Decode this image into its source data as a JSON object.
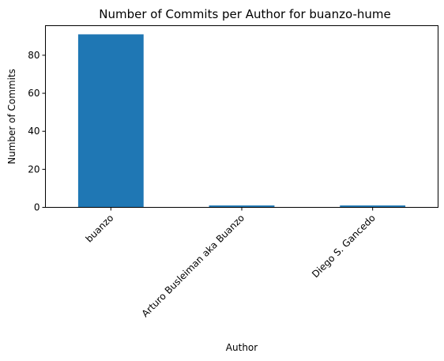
{
  "chart_data": {
    "type": "bar",
    "title": "Number of Commits per Author for buanzo-hume",
    "xlabel": "Author",
    "ylabel": "Number of Commits",
    "categories": [
      "buanzo",
      "Arturo Busleiman aka Buanzo",
      "Diego S. Gancedo"
    ],
    "values": [
      91,
      1,
      1
    ],
    "ylim": [
      0,
      95.55
    ],
    "yticks": [
      0,
      20,
      40,
      60,
      80
    ],
    "grid": false,
    "legend": "none",
    "bar_color": "#1f77b4"
  }
}
